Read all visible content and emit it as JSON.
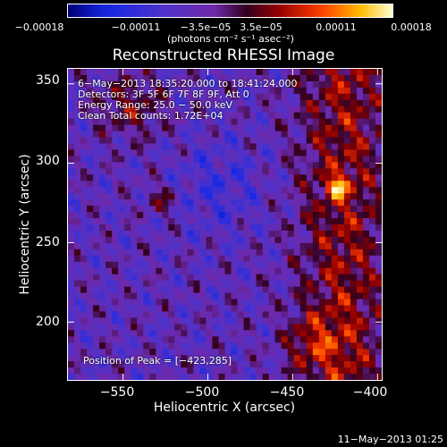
{
  "chart_data": {
    "type": "heatmap",
    "title": "Reconstructed RHESSI Image",
    "xlabel": "Heliocentric X (arcsec)",
    "ylabel": "Heliocentric Y (arcsec)",
    "xlim": [
      -583,
      -397
    ],
    "ylim": [
      163,
      360
    ],
    "x_ticks": [
      "−550",
      "−500",
      "−450",
      "−400"
    ],
    "x_tick_values": [
      -550,
      -500,
      -450,
      -400
    ],
    "y_ticks": [
      "200",
      "250",
      "300",
      "350"
    ],
    "y_tick_values": [
      200,
      250,
      300,
      350
    ],
    "colorbar": {
      "ticks": [
        "−0.00018",
        "−0.00011",
        "−3.5e−05",
        "3.5e−05",
        "0.00011",
        "0.00018"
      ],
      "unit_text": "(photons cm⁻² s⁻¹ asec⁻²)",
      "range": [
        -0.00018,
        0.00018
      ]
    },
    "annotations": {
      "time_range": "6−May−2013 18:35:20.000 to 18:41:24.000",
      "detectors": "Detectors: 3F 5F 6F 7F 8F 9F, Att 0",
      "energy_range": "Energy Range: 25.0 − 50.0 keV",
      "method_counts": "Clean     Total counts: 1.72E+04",
      "peak": "Position of Peak = [−423,285]"
    },
    "peak_position": [
      -423,
      285
    ]
  },
  "footer": {
    "timestamp": "11−May−2013 01:25"
  }
}
